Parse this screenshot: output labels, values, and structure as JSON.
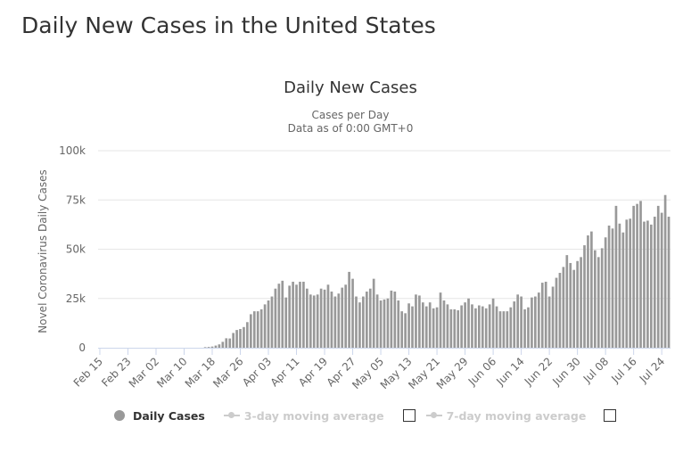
{
  "page": {
    "title": "Daily New Cases in the United States"
  },
  "chart_data": {
    "type": "bar",
    "title": "Daily New Cases",
    "subtitle": [
      "Cases per Day",
      "Data as of 0:00 GMT+0"
    ],
    "xlabel": "",
    "ylabel": "Novel Coronavirus Daily Cases",
    "ylim": [
      0,
      100000
    ],
    "y_ticks": [
      {
        "value": 0,
        "label": "0"
      },
      {
        "value": 25000,
        "label": "25k"
      },
      {
        "value": 50000,
        "label": "50k"
      },
      {
        "value": 75000,
        "label": "75k"
      },
      {
        "value": 100000,
        "label": "100k"
      }
    ],
    "x_tick_labels": [
      "Feb 15",
      "Feb 23",
      "Mar 02",
      "Mar 10",
      "Mar 18",
      "Mar 26",
      "Apr 03",
      "Apr 11",
      "Apr 19",
      "Apr 27",
      "May 05",
      "May 13",
      "May 21",
      "May 29",
      "Jun 06",
      "Jun 14",
      "Jun 22",
      "Jun 30",
      "Jul 08",
      "Jul 16",
      "Jul 24"
    ],
    "x_tick_every": 8,
    "grid": true,
    "colors": {
      "bars": "#999999",
      "grid": "#e6e6e6",
      "axis": "#ccd6eb"
    },
    "series": [
      {
        "name": "Daily Cases",
        "values": [
          0,
          0,
          0,
          0,
          0,
          0,
          0,
          0,
          0,
          0,
          0,
          0,
          0,
          0,
          0,
          0,
          0,
          0,
          0,
          0,
          0,
          0,
          0,
          0,
          0,
          0,
          0,
          0,
          0,
          0,
          300,
          400,
          600,
          1100,
          1700,
          3000,
          4800,
          4700,
          7500,
          9000,
          9500,
          10500,
          13000,
          17000,
          18500,
          18500,
          19500,
          22000,
          24000,
          26000,
          30000,
          32500,
          34000,
          25500,
          31500,
          33500,
          32000,
          33500,
          33500,
          30000,
          27000,
          26500,
          27000,
          30000,
          29500,
          32000,
          28500,
          26000,
          27500,
          30500,
          32000,
          38500,
          35000,
          26000,
          23000,
          26000,
          28500,
          30000,
          35000,
          27000,
          24000,
          24500,
          25000,
          29000,
          28500,
          24000,
          18500,
          17500,
          22500,
          21000,
          27000,
          26500,
          23000,
          21000,
          23000,
          20000,
          20500,
          28000,
          24000,
          22000,
          19500,
          19500,
          19000,
          21500,
          23000,
          25000,
          22000,
          20000,
          21500,
          21000,
          20000,
          22000,
          25000,
          21000,
          18500,
          18500,
          18500,
          20500,
          23500,
          27000,
          26000,
          19500,
          20500,
          25500,
          26000,
          28000,
          33000,
          33500,
          26000,
          31000,
          35500,
          38000,
          41000,
          47000,
          43000,
          39500,
          44000,
          46000,
          52000,
          57000,
          59000,
          49500,
          46000,
          50500,
          56000,
          62000,
          60500,
          72000,
          63000,
          58500,
          65000,
          65500,
          72000,
          73000,
          74500,
          64000,
          64500,
          62500,
          66500,
          72000,
          68500,
          77500,
          66500
        ]
      }
    ],
    "legend": {
      "position": "bottom-center",
      "items": [
        {
          "label": "Daily Cases",
          "active": true
        },
        {
          "label": "3-day moving average",
          "active": false
        },
        {
          "label": "7-day moving average",
          "active": false
        }
      ]
    }
  }
}
